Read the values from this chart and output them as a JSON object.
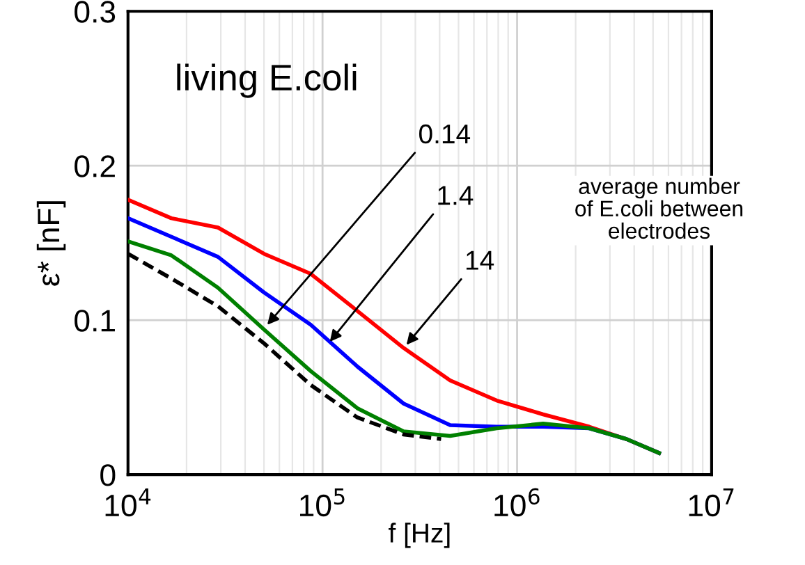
{
  "chart_data": {
    "type": "line",
    "xlabel": "f [Hz]",
    "ylabel": "ε* [nF]",
    "log": "x",
    "xlim": [
      10000,
      10000000
    ],
    "ylim": [
      0,
      0.3
    ],
    "xticks": [
      {
        "value": 10000,
        "label": "10$^{4}$"
      },
      {
        "value": 100000,
        "label": "10$^{5}$"
      },
      {
        "value": 1000000,
        "label": "10$^{6}$"
      },
      {
        "value": 10000000,
        "label": "10$^{7}$"
      }
    ],
    "yticks": [
      0,
      0.1,
      0.2,
      0.3
    ],
    "grid": true,
    "marker": "none",
    "series": [
      {
        "color": "#ff0000",
        "line_style": "solid",
        "x": [
          10000,
          16700,
          29000,
          50000,
          87000,
          151000,
          261000,
          453000,
          785000,
          1360000,
          2350000,
          3650000,
          5370000
        ],
        "values": [
          0.178,
          0.166,
          0.16,
          0.143,
          0.13,
          0.106,
          0.082,
          0.061,
          0.048,
          0.039,
          0.031,
          0.023,
          0.014
        ]
      },
      {
        "color": "#0000ff",
        "line_style": "solid",
        "x": [
          10000,
          16700,
          29000,
          50000,
          87000,
          151000,
          261000,
          453000,
          785000,
          1360000,
          2350000,
          3650000,
          5370000
        ],
        "values": [
          0.166,
          0.154,
          0.141,
          0.118,
          0.097,
          0.07,
          0.046,
          0.032,
          0.031,
          0.031,
          0.03,
          0.023,
          0.014
        ]
      },
      {
        "color": "#008000",
        "line_style": "solid",
        "x": [
          10000,
          16700,
          29000,
          50000,
          87000,
          151000,
          261000,
          453000,
          785000,
          1360000,
          2350000,
          3650000,
          5370000
        ],
        "values": [
          0.151,
          0.142,
          0.121,
          0.094,
          0.067,
          0.043,
          0.028,
          0.025,
          0.03,
          0.033,
          0.03,
          0.023,
          0.014
        ]
      },
      {
        "color": "#000000",
        "line_style": "dashed",
        "x": [
          10000,
          16700,
          29000,
          50000,
          87000,
          151000,
          261000,
          407000
        ],
        "values": [
          0.143,
          0.127,
          0.109,
          0.085,
          0.058,
          0.037,
          0.026,
          0.023
        ]
      }
    ],
    "annotations": [
      "living E.coli",
      {
        "text": "0.14",
        "x": 52000,
        "y": 0.097
      },
      {
        "text": "1.4",
        "x": 109000,
        "y": 0.086
      },
      {
        "text": "14",
        "x": 270000,
        "y": 0.084
      },
      "average number\nof E.coli between\nelectrodes"
    ]
  }
}
